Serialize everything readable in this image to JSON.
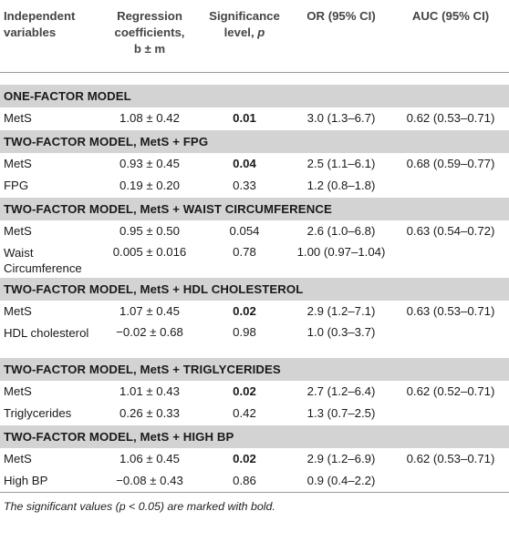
{
  "header": {
    "col1": [
      "Independent",
      "variables"
    ],
    "col2": [
      "Regression",
      "coefficients,",
      "b ± m"
    ],
    "col3_line1": "Significance",
    "col3_line2_pre": "level, ",
    "col3_line2_em": "p",
    "col4": "OR (95% CI)",
    "col5": "AUC (95% CI)"
  },
  "sections": [
    {
      "title": "ONE-FACTOR MODEL",
      "rows": [
        {
          "var": "MetS",
          "coef": "1.08 ± 0.42",
          "p": "0.01",
          "bold": true,
          "or": "3.0 (1.3–6.7)",
          "auc": "0.62 (0.53–0.71)"
        }
      ]
    },
    {
      "title": "TWO-FACTOR MODEL, MetS + FPG",
      "rows": [
        {
          "var": "MetS",
          "coef": "0.93 ± 0.45",
          "p": "0.04",
          "bold": true,
          "or": "2.5 (1.1–6.1)",
          "auc": "0.68 (0.59–0.77)"
        },
        {
          "var": "FPG",
          "coef": "0.19 ± 0.20",
          "p": "0.33",
          "bold": false,
          "or": "1.2 (0.8–1.8)",
          "auc": ""
        }
      ]
    },
    {
      "title": "TWO-FACTOR MODEL, MetS + WAIST CIRCUMFERENCE",
      "rows": [
        {
          "var": "MetS",
          "coef": "0.95 ± 0.50",
          "p": "0.054",
          "bold": false,
          "or": "2.6 (1.0–6.8)",
          "auc": "0.63 (0.54–0.72)"
        },
        {
          "var": "Waist Circumference",
          "coef": "0.005 ± 0.016",
          "p": "0.78",
          "bold": false,
          "or": "1.00 (0.97–1.04)",
          "auc": "",
          "tall": true
        }
      ]
    },
    {
      "title": "TWO-FACTOR MODEL, MetS + HDL CHOLESTEROL",
      "rows": [
        {
          "var": "MetS",
          "coef": "1.07 ± 0.45",
          "p": "0.02",
          "bold": true,
          "or": "2.9 (1.2–7.1)",
          "auc": "0.63 (0.53–0.71)"
        },
        {
          "var": "HDL cholesterol",
          "coef": "−0.02 ± 0.68",
          "p": "0.98",
          "bold": false,
          "or": "1.0 (0.3–3.7)",
          "auc": "",
          "tall": true
        }
      ]
    },
    {
      "title": "TWO-FACTOR MODEL, MetS + TRIGLYCERIDES",
      "rows": [
        {
          "var": "MetS",
          "coef": "1.01 ± 0.43",
          "p": "0.02",
          "bold": true,
          "or": "2.7 (1.2–6.4)",
          "auc": "0.62 (0.52–0.71)"
        },
        {
          "var": "Triglycerides",
          "coef": "0.26 ± 0.33",
          "p": "0.42",
          "bold": false,
          "or": "1.3 (0.7–2.5)",
          "auc": ""
        }
      ]
    },
    {
      "title": "TWO-FACTOR MODEL, MetS + HIGH BP",
      "rows": [
        {
          "var": "MetS",
          "coef": "1.06 ± 0.45",
          "p": "0.02",
          "bold": true,
          "or": "2.9 (1.2–6.9)",
          "auc": "0.62 (0.53–0.71)"
        },
        {
          "var": "High BP",
          "coef": "−0.08 ± 0.43",
          "p": "0.86",
          "bold": false,
          "or": "0.9 (0.4–2.2)",
          "auc": ""
        }
      ]
    }
  ],
  "footnote": "The significant values (p < 0.05) are marked with bold."
}
